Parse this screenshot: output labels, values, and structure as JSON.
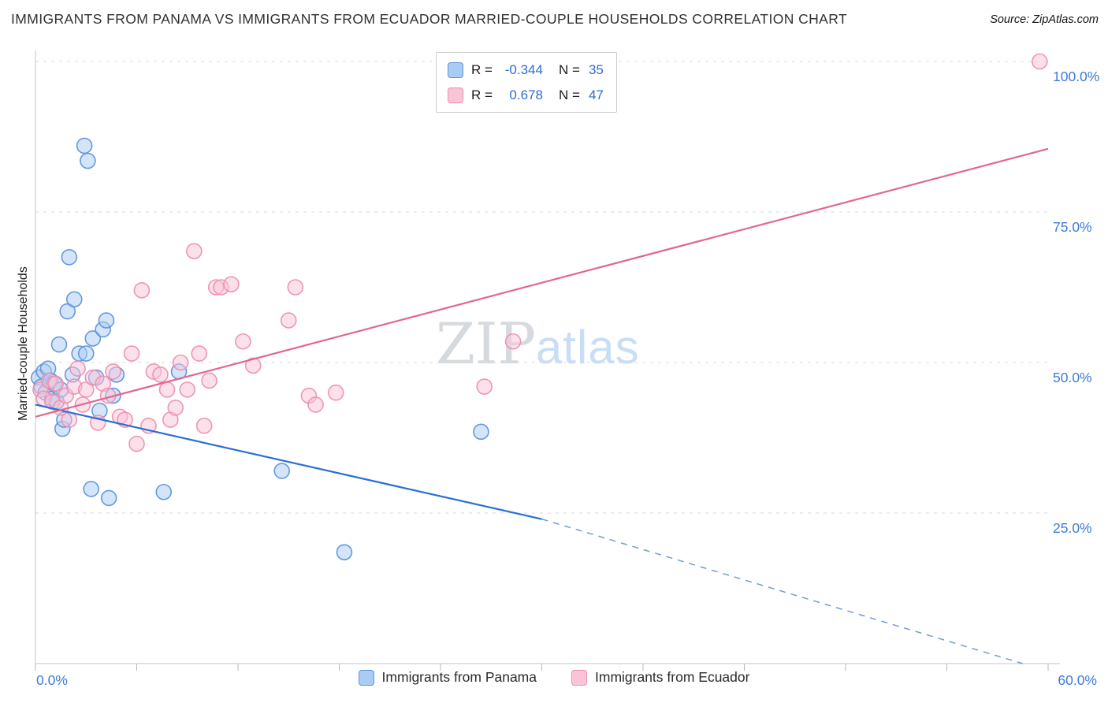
{
  "header": {
    "title": "IMMIGRANTS FROM PANAMA VS IMMIGRANTS FROM ECUADOR MARRIED-COUPLE HOUSEHOLDS CORRELATION CHART",
    "source": "Source: ZipAtlas.com"
  },
  "ylabel": "Married-couple Households",
  "watermark": {
    "zip": "ZIP",
    "atlas": "atlas"
  },
  "legend_box": {
    "rows": [
      {
        "series": "Immigrants from Panama",
        "r_label": "R =",
        "r_value": "-0.344",
        "n_label": "N =",
        "n_value": "35"
      },
      {
        "series": "Immigrants from Ecuador",
        "r_label": "R =",
        "r_value": "0.678",
        "n_label": "N =",
        "n_value": "47"
      }
    ]
  },
  "bottom_legend": [
    {
      "label": "Immigrants from Panama"
    },
    {
      "label": "Immigrants from Ecuador"
    }
  ],
  "axes": {
    "x_range": [
      0,
      60
    ],
    "y_range": [
      0,
      100
    ],
    "x_tick_step": 6,
    "y_gridlines": [
      25,
      50,
      75,
      100
    ],
    "y_tick_labels": [
      {
        "value": 100,
        "label": "100.0%"
      },
      {
        "value": 75,
        "label": "75.0%"
      },
      {
        "value": 50,
        "label": "50.0%"
      },
      {
        "value": 25,
        "label": "25.0%"
      }
    ],
    "x_min_label": "0.0%",
    "x_max_label": "60.0%"
  },
  "colors": {
    "accent_blue": "#3d7bdc",
    "grid": "#d9d9d9",
    "axis": "#c2c6ca",
    "tick": "#b5b9bd",
    "panama_fill": "#a9ccf4",
    "panama_stroke": "#5d94dd",
    "panama_line": "#2a6fd4",
    "panama_line_dashed": "#6f9cdb",
    "ecuador_fill": "#fac4d7",
    "ecuador_stroke": "#ee8fb0",
    "ecuador_line": "#e2678f"
  },
  "chart_data": {
    "type": "scatter",
    "title": "IMMIGRANTS FROM PANAMA VS IMMIGRANTS FROM ECUADOR MARRIED-COUPLE HOUSEHOLDS CORRELATION CHART",
    "xlabel": "",
    "ylabel": "Married-couple Households",
    "xlim": [
      0,
      60
    ],
    "ylim": [
      0,
      100
    ],
    "x_unit": "%",
    "y_unit": "%",
    "grid": true,
    "legend_position": "top-center",
    "series": [
      {
        "name": "Immigrants from Panama",
        "R": -0.344,
        "N": 35,
        "points": [
          [
            0.2,
            47.5
          ],
          [
            0.35,
            46
          ],
          [
            0.5,
            48.5
          ],
          [
            0.6,
            45
          ],
          [
            0.75,
            49
          ],
          [
            0.9,
            47
          ],
          [
            1.0,
            44
          ],
          [
            1.1,
            46.5
          ],
          [
            1.25,
            43.5
          ],
          [
            1.4,
            53
          ],
          [
            1.5,
            45.5
          ],
          [
            1.6,
            39
          ],
          [
            1.7,
            40.5
          ],
          [
            1.9,
            58.5
          ],
          [
            2.0,
            67.5
          ],
          [
            2.2,
            48
          ],
          [
            2.3,
            60.5
          ],
          [
            2.6,
            51.5
          ],
          [
            2.9,
            86
          ],
          [
            3.0,
            51.5
          ],
          [
            3.1,
            83.5
          ],
          [
            3.3,
            29
          ],
          [
            3.4,
            54
          ],
          [
            3.6,
            47.5
          ],
          [
            3.8,
            42
          ],
          [
            4.0,
            55.5
          ],
          [
            4.2,
            57
          ],
          [
            4.35,
            27.5
          ],
          [
            4.6,
            44.5
          ],
          [
            4.8,
            48
          ],
          [
            7.6,
            28.5
          ],
          [
            8.5,
            48.5
          ],
          [
            14.6,
            32
          ],
          [
            18.3,
            18.5
          ],
          [
            26.4,
            38.5
          ]
        ],
        "trend_solid": [
          [
            0,
            43
          ],
          [
            30,
            24
          ]
        ],
        "trend_dashed": [
          [
            30,
            24
          ],
          [
            58.5,
            0
          ]
        ]
      },
      {
        "name": "Immigrants from Ecuador",
        "R": 0.678,
        "N": 47,
        "points": [
          [
            0.3,
            45.5
          ],
          [
            0.5,
            44
          ],
          [
            0.8,
            47
          ],
          [
            1.0,
            43.5
          ],
          [
            1.2,
            46.5
          ],
          [
            1.5,
            42.5
          ],
          [
            1.8,
            44.5
          ],
          [
            2.0,
            40.5
          ],
          [
            2.3,
            46
          ],
          [
            2.5,
            49
          ],
          [
            2.8,
            43
          ],
          [
            3.0,
            45.5
          ],
          [
            3.4,
            47.5
          ],
          [
            3.7,
            40
          ],
          [
            4.0,
            46.5
          ],
          [
            4.3,
            44.5
          ],
          [
            4.6,
            48.5
          ],
          [
            5.0,
            41
          ],
          [
            5.3,
            40.5
          ],
          [
            5.7,
            51.5
          ],
          [
            6.0,
            36.5
          ],
          [
            6.3,
            62
          ],
          [
            6.7,
            39.5
          ],
          [
            7.0,
            48.5
          ],
          [
            7.4,
            48
          ],
          [
            7.8,
            45.5
          ],
          [
            8.0,
            40.5
          ],
          [
            8.3,
            42.5
          ],
          [
            8.6,
            50
          ],
          [
            9.0,
            45.5
          ],
          [
            9.4,
            68.5
          ],
          [
            9.7,
            51.5
          ],
          [
            10.0,
            39.5
          ],
          [
            10.3,
            47
          ],
          [
            10.7,
            62.5
          ],
          [
            11.0,
            62.5
          ],
          [
            11.6,
            63
          ],
          [
            12.3,
            53.5
          ],
          [
            12.9,
            49.5
          ],
          [
            15.0,
            57
          ],
          [
            15.4,
            62.5
          ],
          [
            16.2,
            44.5
          ],
          [
            16.6,
            43
          ],
          [
            17.8,
            45
          ],
          [
            26.6,
            46
          ],
          [
            28.3,
            53.5
          ],
          [
            59.5,
            100
          ]
        ],
        "trend_solid": [
          [
            0,
            41
          ],
          [
            60,
            85.5
          ]
        ]
      }
    ]
  }
}
